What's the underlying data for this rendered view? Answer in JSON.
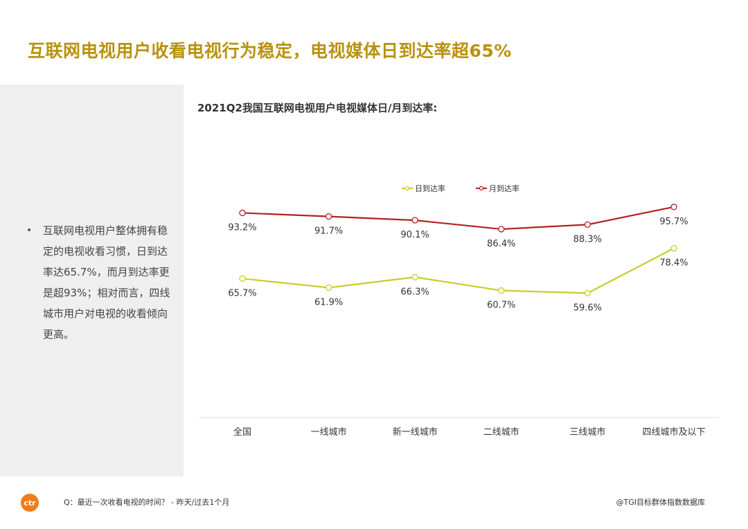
{
  "page": {
    "title": "互联网电视用户收看电视行为稳定，电视媒体日到达率超65%"
  },
  "sidebar": {
    "bullet_mark": "•",
    "bullet_text": "互联网电视用户整体拥有稳定的电视收看习惯，日到达率达65.7%，而月到达率更是超93%；相对而言，四线城市用户对电视的收看倾向更高。"
  },
  "footer": {
    "question": "Q：最近一次收看电视的时间？ - 昨天/过去1个月",
    "source": "@TGI目标群体指数数据库",
    "logo_text": "ctr"
  },
  "colors": {
    "title": "#b8920f",
    "daily": "#c8cc2a",
    "monthly": "#b52020",
    "panel": "#efefef",
    "axis": "#d9d9d9"
  },
  "chart_data": {
    "type": "line",
    "title": "2021Q2我国互联网电视用户电视媒体日/月到达率:",
    "categories": [
      "全国",
      "一线城市",
      "新一线城市",
      "二线城市",
      "三线城市",
      "四线城市及以下"
    ],
    "series": [
      {
        "name": "日到达率",
        "values": [
          65.7,
          61.9,
          66.3,
          60.7,
          59.6,
          78.4
        ],
        "labels": [
          "65.7%",
          "61.9%",
          "66.3%",
          "60.7%",
          "59.6%",
          "78.4%"
        ]
      },
      {
        "name": "月到达率",
        "values": [
          93.2,
          91.7,
          90.1,
          86.4,
          88.3,
          95.7
        ],
        "labels": [
          "93.2%",
          "91.7%",
          "90.1%",
          "86.4%",
          "88.3%",
          "95.7%"
        ]
      }
    ],
    "legend_position": "top-center",
    "grid": false
  }
}
